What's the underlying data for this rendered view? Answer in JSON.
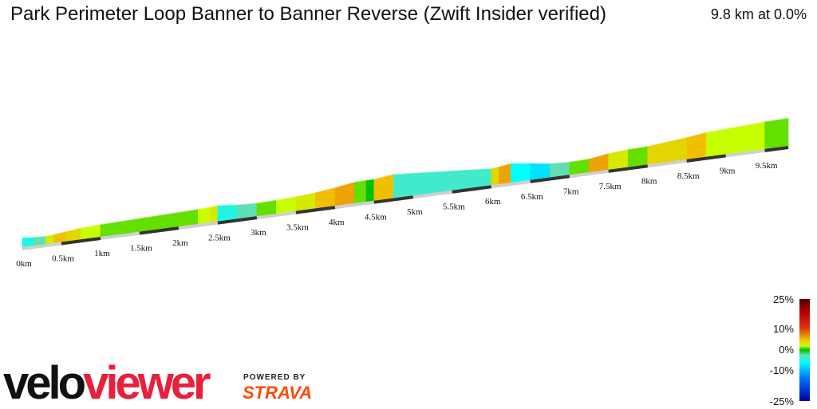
{
  "header": {
    "title": "Park Perimeter Loop Banner to Banner Reverse (Zwift Insider verified)",
    "distance": "9.8 km",
    "at_word": "at",
    "avg_grade": "0.0%"
  },
  "chart_data": {
    "type": "area",
    "xlabel": "",
    "ylabel": "",
    "x_unit": "km",
    "x_range": [
      0,
      9.8
    ],
    "ticks": [
      "0km",
      "0.5km",
      "1km",
      "1.5km",
      "2km",
      "2.5km",
      "3km",
      "3.5km",
      "4km",
      "4.5km",
      "5km",
      "5.5km",
      "6km",
      "6.5km",
      "7km",
      "7.5km",
      "8km",
      "8.5km",
      "9km",
      "9.5km"
    ],
    "tick_values": [
      0,
      0.5,
      1,
      1.5,
      2,
      2.5,
      3,
      3.5,
      4,
      4.5,
      5,
      5.5,
      6,
      6.5,
      7,
      7.5,
      8,
      8.5,
      9,
      9.5
    ],
    "profile": {
      "x": [
        0,
        0.15,
        0.3,
        0.4,
        0.55,
        0.75,
        1.0,
        1.25,
        1.5,
        1.75,
        2.0,
        2.25,
        2.4,
        2.5,
        2.75,
        3.0,
        3.25,
        3.5,
        3.75,
        4.0,
        4.25,
        4.4,
        4.5,
        4.75,
        5.0,
        5.25,
        5.5,
        5.75,
        6.0,
        6.1,
        6.25,
        6.5,
        6.75,
        7.0,
        7.25,
        7.5,
        7.75,
        8.0,
        8.25,
        8.5,
        8.75,
        9.0,
        9.25,
        9.5,
        9.8
      ],
      "grade": [
        -4,
        -2,
        3,
        5,
        4,
        2,
        1,
        1,
        1,
        1,
        1,
        2,
        3,
        -4,
        -2,
        1,
        2,
        3,
        5,
        6,
        1,
        0,
        5,
        -3,
        -3,
        -3,
        -3,
        -3,
        4,
        6,
        -5,
        -6,
        -2,
        1,
        6,
        3,
        1,
        4,
        4,
        5,
        2,
        2,
        2,
        1,
        -1
      ]
    }
  },
  "legend": {
    "title": "",
    "labels": [
      "25%",
      "10%",
      "0%",
      "-10%",
      "-25%"
    ]
  },
  "branding": {
    "logo_velo": "velo",
    "logo_viewer": "viewer",
    "powered_by": "POWERED BY",
    "strava": "STRAVA"
  }
}
